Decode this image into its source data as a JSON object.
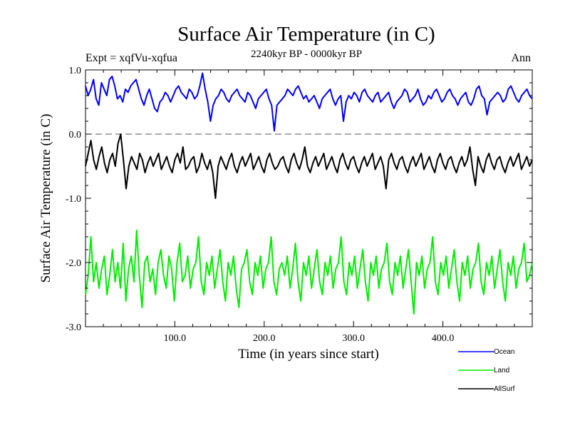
{
  "chart_data": {
    "type": "line",
    "title": "Surface Air Temperature (in C)",
    "subtitle": "2240kyr BP - 0000kyr BP",
    "experiment_label": "Expt = xqfVu-xqfua",
    "season_label": "Ann",
    "xlabel": "Time (in years since start)",
    "ylabel": "Surface Air Temperature (in C)",
    "xlim": [
      0,
      500
    ],
    "ylim": [
      -3.0,
      1.0
    ],
    "x_ticks": [
      100,
      200,
      300,
      400
    ],
    "x_tick_labels": [
      "100.0",
      "200.0",
      "300.0",
      "400.0"
    ],
    "y_ticks": [
      1.0,
      0.0,
      -1.0,
      -2.0,
      -3.0
    ],
    "y_tick_labels": [
      "1.0",
      "0.0",
      "-1.0",
      "-2.0",
      "-3.0"
    ],
    "reference_line": 0.0,
    "legend_position": "bottom-right",
    "series": [
      {
        "name": "Ocean",
        "color": "#0000ff",
        "values": [
          0.75,
          0.6,
          0.7,
          0.85,
          0.55,
          0.45,
          0.8,
          0.7,
          0.6,
          0.85,
          0.9,
          0.75,
          0.55,
          0.6,
          0.5,
          0.7,
          0.65,
          0.75,
          0.8,
          0.85,
          0.7,
          0.55,
          0.45,
          0.6,
          0.7,
          0.55,
          0.4,
          0.35,
          0.5,
          0.55,
          0.65,
          0.6,
          0.5,
          0.6,
          0.7,
          0.75,
          0.65,
          0.6,
          0.55,
          0.7,
          0.65,
          0.55,
          0.6,
          0.75,
          0.95,
          0.7,
          0.5,
          0.2,
          0.45,
          0.55,
          0.6,
          0.7,
          0.65,
          0.55,
          0.5,
          0.6,
          0.65,
          0.7,
          0.6,
          0.55,
          0.5,
          0.65,
          0.6,
          0.5,
          0.4,
          0.55,
          0.6,
          0.65,
          0.7,
          0.55,
          0.45,
          0.05,
          0.45,
          0.5,
          0.55,
          0.6,
          0.7,
          0.65,
          0.6,
          0.7,
          0.75,
          0.65,
          0.55,
          0.6,
          0.5,
          0.55,
          0.6,
          0.5,
          0.4,
          0.55,
          0.6,
          0.65,
          0.7,
          0.55,
          0.45,
          0.55,
          0.6,
          0.2,
          0.5,
          0.6,
          0.55,
          0.65,
          0.6,
          0.5,
          0.65,
          0.7,
          0.6,
          0.55,
          0.5,
          0.6,
          0.65,
          0.5,
          0.55,
          0.6,
          0.65,
          0.5,
          0.4,
          0.5,
          0.55,
          0.6,
          0.7,
          0.65,
          0.5,
          0.55,
          0.6,
          0.7,
          0.55,
          0.45,
          0.5,
          0.6,
          0.55,
          0.65,
          0.7,
          0.6,
          0.5,
          0.55,
          0.65,
          0.7,
          0.6,
          0.55,
          0.45,
          0.55,
          0.6,
          0.65,
          0.5,
          0.45,
          0.55,
          0.7,
          0.75,
          0.6,
          0.55,
          0.3,
          0.5,
          0.55,
          0.6,
          0.65,
          0.6,
          0.5,
          0.55,
          0.7,
          0.75,
          0.65,
          0.55,
          0.5,
          0.6,
          0.65,
          0.7,
          0.6,
          0.55
        ]
      },
      {
        "name": "Land",
        "color": "#00ee00",
        "values": [
          -2.5,
          -2.2,
          -1.6,
          -2.3,
          -2.0,
          -2.4,
          -2.1,
          -1.9,
          -2.5,
          -2.2,
          -1.8,
          -2.3,
          -2.0,
          -2.4,
          -1.7,
          -2.6,
          -2.1,
          -1.9,
          -2.3,
          -1.5,
          -2.2,
          -2.7,
          -2.0,
          -1.9,
          -2.3,
          -2.1,
          -2.5,
          -2.0,
          -1.8,
          -2.2,
          -2.4,
          -1.9,
          -2.1,
          -2.6,
          -2.0,
          -1.7,
          -2.3,
          -2.2,
          -1.9,
          -2.4,
          -2.1,
          -2.0,
          -1.6,
          -2.3,
          -2.5,
          -2.0,
          -2.2,
          -1.9,
          -2.4,
          -2.1,
          -1.8,
          -2.3,
          -2.6,
          -2.0,
          -2.2,
          -1.9,
          -2.4,
          -2.7,
          -2.1,
          -2.0,
          -1.8,
          -2.3,
          -2.5,
          -2.0,
          -2.2,
          -1.9,
          -2.4,
          -2.1,
          -2.0,
          -1.6,
          -2.3,
          -2.5,
          -2.1,
          -2.0,
          -2.2,
          -1.9,
          -2.4,
          -2.1,
          -1.7,
          -2.3,
          -2.6,
          -2.0,
          -2.2,
          -1.9,
          -2.4,
          -2.1,
          -1.8,
          -2.3,
          -2.5,
          -2.0,
          -2.2,
          -1.9,
          -2.4,
          -2.1,
          -2.0,
          -1.6,
          -2.3,
          -2.5,
          -2.0,
          -2.2,
          -1.9,
          -2.4,
          -2.1,
          -1.8,
          -2.3,
          -2.6,
          -2.0,
          -2.2,
          -1.9,
          -2.4,
          -2.1,
          -2.0,
          -1.7,
          -2.3,
          -2.5,
          -2.0,
          -2.2,
          -1.9,
          -2.4,
          -2.1,
          -1.8,
          -2.3,
          -2.8,
          -2.0,
          -2.2,
          -1.9,
          -2.4,
          -2.1,
          -2.0,
          -1.6,
          -2.3,
          -2.5,
          -2.0,
          -2.2,
          -1.9,
          -2.4,
          -2.1,
          -1.8,
          -2.3,
          -2.6,
          -2.0,
          -2.2,
          -1.9,
          -2.4,
          -2.1,
          -2.0,
          -1.7,
          -2.3,
          -2.5,
          -2.0,
          -2.2,
          -1.9,
          -2.4,
          -2.1,
          -1.8,
          -2.3,
          -2.6,
          -2.0,
          -2.2,
          -1.9,
          -2.4,
          -2.1,
          -2.0,
          -1.7,
          -2.3,
          -2.2,
          -2.0
        ]
      },
      {
        "name": "AllSurf",
        "color": "#000000",
        "values": [
          -0.5,
          -0.3,
          -0.1,
          -0.4,
          -0.55,
          -0.35,
          -0.2,
          -0.45,
          -0.6,
          -0.4,
          -0.3,
          -0.5,
          -0.15,
          0.0,
          -0.4,
          -0.85,
          -0.5,
          -0.35,
          -0.45,
          -0.55,
          -0.3,
          -0.4,
          -0.6,
          -0.45,
          -0.35,
          -0.5,
          -0.4,
          -0.3,
          -0.55,
          -0.45,
          -0.35,
          -0.5,
          -0.6,
          -0.4,
          -0.3,
          -0.45,
          -0.2,
          -0.55,
          -0.5,
          -0.4,
          -0.35,
          -0.6,
          -0.5,
          -0.3,
          -0.45,
          -0.55,
          -0.4,
          -0.6,
          -1.0,
          -0.5,
          -0.35,
          -0.45,
          -0.55,
          -0.4,
          -0.3,
          -0.5,
          -0.6,
          -0.45,
          -0.35,
          -0.5,
          -0.4,
          -0.3,
          -0.55,
          -0.45,
          -0.35,
          -0.5,
          -0.6,
          -0.4,
          -0.3,
          -0.45,
          -0.55,
          -0.5,
          -0.4,
          -0.35,
          -0.5,
          -0.6,
          -0.4,
          -0.3,
          -0.45,
          -0.55,
          -0.4,
          -0.2,
          -0.5,
          -0.6,
          -0.45,
          -0.35,
          -0.5,
          -0.4,
          -0.3,
          -0.55,
          -0.45,
          -0.35,
          -0.5,
          -0.6,
          -0.4,
          -0.3,
          -0.45,
          -0.55,
          -0.4,
          -0.35,
          -0.5,
          -0.6,
          -0.45,
          -0.35,
          -0.5,
          -0.4,
          -0.3,
          -0.55,
          -0.45,
          -0.35,
          -0.5,
          -0.85,
          -0.4,
          -0.3,
          -0.45,
          -0.55,
          -0.4,
          -0.35,
          -0.5,
          -0.6,
          -0.45,
          -0.35,
          -0.5,
          -0.4,
          -0.3,
          -0.55,
          -0.45,
          -0.35,
          -0.5,
          -0.6,
          -0.4,
          -0.3,
          -0.45,
          -0.55,
          -0.4,
          -0.35,
          -0.5,
          -0.6,
          -0.45,
          -0.35,
          -0.5,
          -0.4,
          -0.2,
          -0.55,
          -0.8,
          -0.35,
          -0.5,
          -0.6,
          -0.4,
          -0.3,
          -0.45,
          -0.55,
          -0.4,
          -0.35,
          -0.5,
          -0.6,
          -0.45,
          -0.35,
          -0.5,
          -0.4,
          -0.3,
          -0.55,
          -0.45,
          -0.35,
          -0.5,
          -0.4
        ]
      }
    ]
  }
}
